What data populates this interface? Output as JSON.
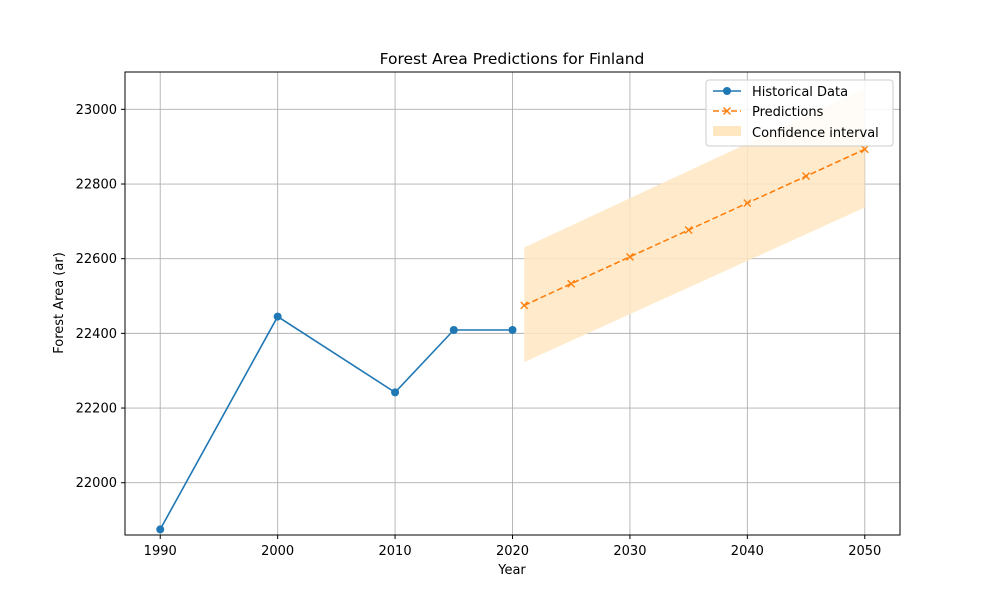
{
  "chart_data": {
    "type": "line",
    "title": "Forest Area Predictions for Finland",
    "xlabel": "Year",
    "ylabel": "Forest Area (ar)",
    "xlim": [
      1987,
      2053
    ],
    "ylim": [
      21860,
      23100
    ],
    "xticks": [
      1990,
      2000,
      2010,
      2020,
      2030,
      2040,
      2050
    ],
    "yticks": [
      22000,
      22200,
      22400,
      22600,
      22800,
      23000
    ],
    "grid": true,
    "legend_position": "upper-right",
    "series": [
      {
        "name": "Historical Data",
        "color": "#1f77b4",
        "style": "solid",
        "marker": "circle",
        "x": [
          1990,
          2000,
          2010,
          2015,
          2020
        ],
        "y": [
          21875,
          22445,
          22242,
          22409,
          22409
        ]
      },
      {
        "name": "Predictions",
        "color": "#ff7f0e",
        "style": "dashed",
        "marker": "x",
        "x": [
          2021,
          2025,
          2030,
          2035,
          2040,
          2045,
          2050
        ],
        "y": [
          22475,
          22533,
          22605,
          22677,
          22749,
          22821,
          22893
        ]
      }
    ],
    "confidence_interval": {
      "name": "Confidence interval",
      "color": "#ffe7c2",
      "x": [
        2021,
        2050
      ],
      "lower": [
        22323,
        22737
      ],
      "upper": [
        22630,
        23055
      ]
    }
  }
}
